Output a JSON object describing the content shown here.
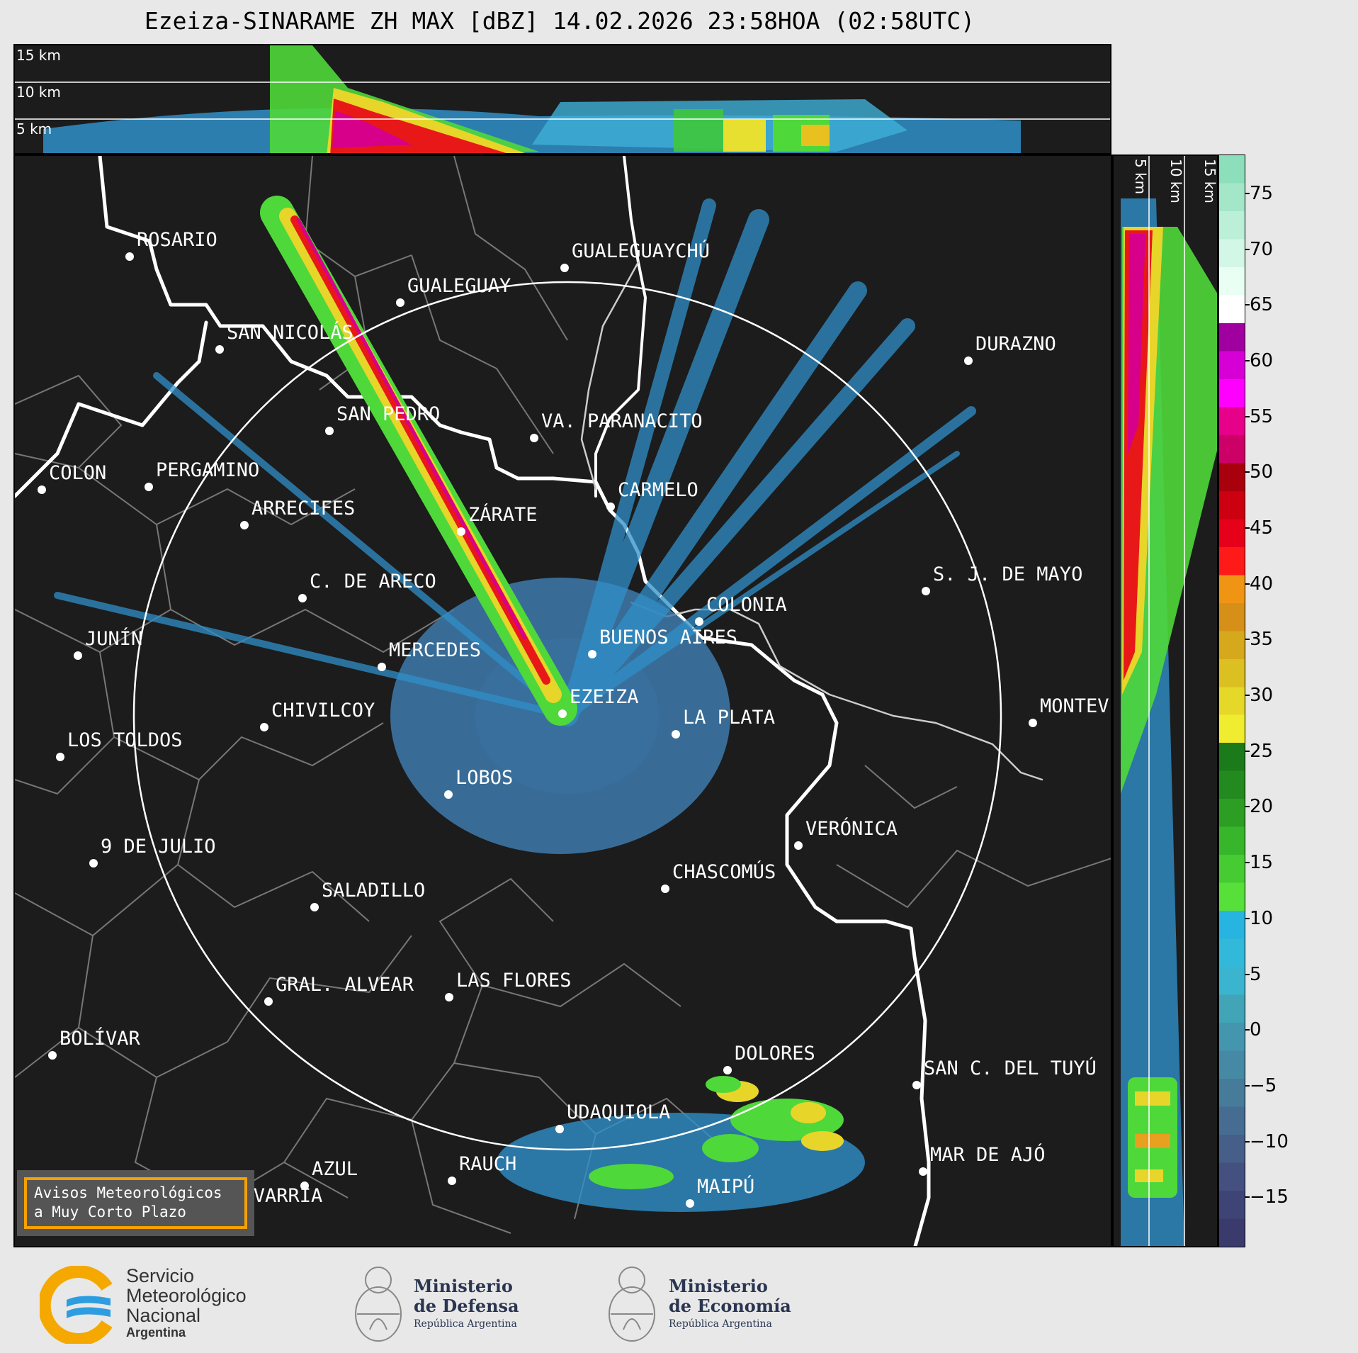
{
  "title": "Ezeiza-SINARAME ZH MAX [dBZ] 14.02.2026 23:58HOA (02:58UTC)",
  "height_labels": {
    "top": [
      "15 km",
      "10 km",
      "5 km"
    ],
    "side": [
      "5 km",
      "10 km",
      "15 km"
    ]
  },
  "colorbar": {
    "unit": "dBZ",
    "ticks": [
      "75",
      "70",
      "65",
      "60",
      "55",
      "50",
      "45",
      "40",
      "35",
      "30",
      "25",
      "20",
      "15",
      "10",
      "5",
      "0",
      "−5",
      "−10",
      "−15"
    ],
    "colors": [
      "#3a3a6c",
      "#3e4576",
      "#44507f",
      "#455f88",
      "#466d91",
      "#477b9a",
      "#4689a4",
      "#4496ae",
      "#41a4b7",
      "#3bb5cf",
      "#32b8d8",
      "#28b4e0",
      "#58e03a",
      "#46cc32",
      "#38b62b",
      "#2d9e24",
      "#228a1e",
      "#1b7a1a",
      "#f0ec30",
      "#e6d828",
      "#dcc022",
      "#d6a81c",
      "#d69018",
      "#f09414",
      "#ff1a1a",
      "#e6001a",
      "#cc0010",
      "#a8000c",
      "#cc0066",
      "#e6008a",
      "#ff00ff",
      "#d600d6",
      "#a000a0",
      "#ffffff",
      "#eafff4",
      "#d2f7e6",
      "#bcefd8",
      "#a4e7c8",
      "#8cdfba"
    ]
  },
  "cities": [
    {
      "name": "ROSARIO"
    },
    {
      "name": "GUALEGUAYCHÚ"
    },
    {
      "name": "GUALEGUAY"
    },
    {
      "name": "SAN NICOLÁS"
    },
    {
      "name": "DURAZNO"
    },
    {
      "name": "SAN PEDRO"
    },
    {
      "name": "VA. PARANACITO"
    },
    {
      "name": "COLON"
    },
    {
      "name": "PERGAMINO"
    },
    {
      "name": "CARMELO"
    },
    {
      "name": "ARRECIFES"
    },
    {
      "name": "ZÁRATE"
    },
    {
      "name": "C. DE ARECO"
    },
    {
      "name": "S. J. DE MAYO"
    },
    {
      "name": "COLONIA"
    },
    {
      "name": "JUNÍN"
    },
    {
      "name": "MERCEDES"
    },
    {
      "name": "BUENOS AIRES"
    },
    {
      "name": "EZEIZA"
    },
    {
      "name": "MONTEV"
    },
    {
      "name": "CHIVILCOY"
    },
    {
      "name": "LA PLATA"
    },
    {
      "name": "LOS TOLDOS"
    },
    {
      "name": "LOBOS"
    },
    {
      "name": "VERÓNICA"
    },
    {
      "name": "9 DE JULIO"
    },
    {
      "name": "CHASCOMÚS"
    },
    {
      "name": "SALADILLO"
    },
    {
      "name": "GRAL. ALVEAR"
    },
    {
      "name": "LAS FLORES"
    },
    {
      "name": "BOLÍVAR"
    },
    {
      "name": "DOLORES"
    },
    {
      "name": "SAN C. DEL TUYÚ"
    },
    {
      "name": "UDAQUIOLA"
    },
    {
      "name": "MAR DE AJÓ"
    },
    {
      "name": "AZUL"
    },
    {
      "name": "RAUCH"
    },
    {
      "name": "OLAVARRÍA"
    },
    {
      "name": "MAIPÚ"
    }
  ],
  "warning_box": {
    "line1": "Avisos Meteorológicos",
    "line2": "a Muy Corto Plazo"
  },
  "logos": {
    "smn": {
      "line1": "Servicio",
      "line2": "Meteorológico",
      "line3": "Nacional",
      "line4": "Argentina"
    },
    "defensa": {
      "line1": "Ministerio",
      "line2": "de Defensa",
      "line3": "República Argentina"
    },
    "economia": {
      "line1": "Ministerio",
      "line2": "de Economía",
      "line3": "República Argentina"
    }
  }
}
